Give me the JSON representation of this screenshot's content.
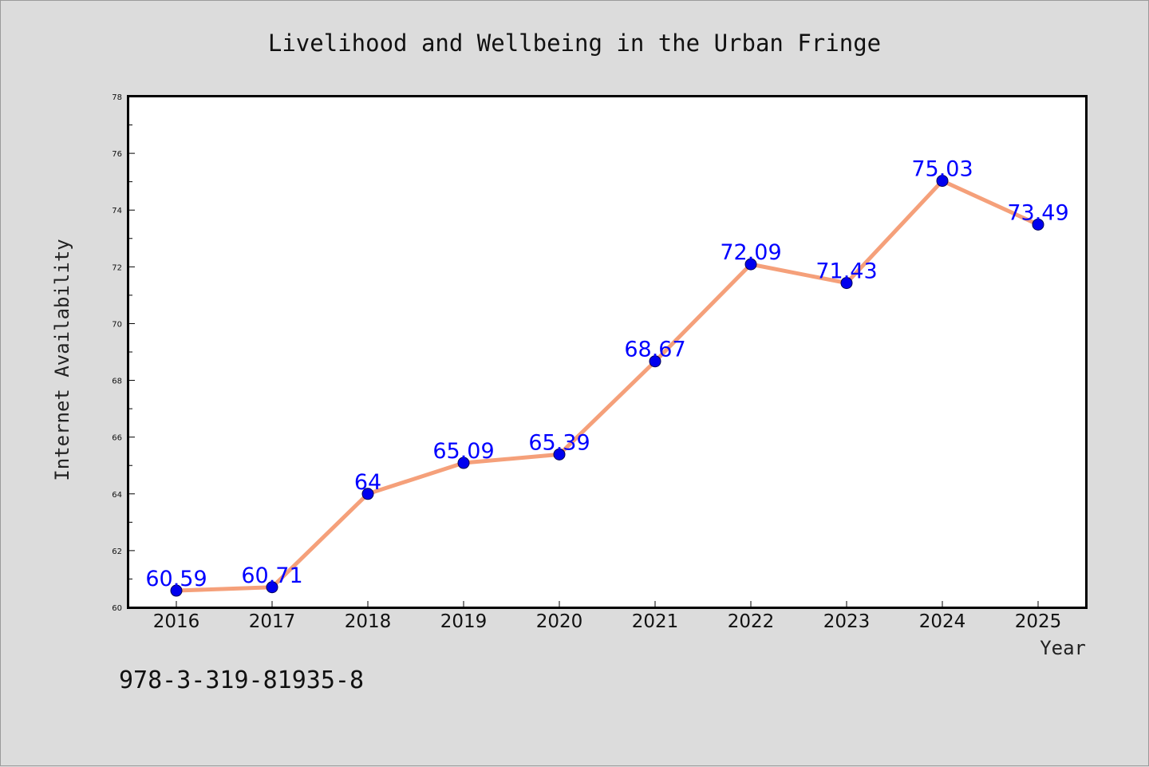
{
  "chart_data": {
    "type": "line",
    "title": "Livelihood and Wellbeing in the Urban Fringe",
    "xlabel": "Year",
    "ylabel": "Internet Availability",
    "categories": [
      "2016",
      "2017",
      "2018",
      "2019",
      "2020",
      "2021",
      "2022",
      "2023",
      "2024",
      "2025"
    ],
    "series": [
      {
        "values": [
          60.59,
          60.71,
          64,
          65.09,
          65.39,
          68.67,
          72.09,
          71.43,
          75.03,
          73.49
        ],
        "data_labels": [
          "60.59",
          "60.71",
          "64",
          "65.09",
          "65.39",
          "68.67",
          "72.09",
          "71.43",
          "75.03",
          "73.49"
        ]
      }
    ],
    "ylim": [
      60,
      78
    ],
    "yticks": [
      60,
      62,
      64,
      66,
      68,
      70,
      72,
      74,
      76,
      78
    ],
    "ytick_labels": [
      "60",
      "62",
      "64",
      "66",
      "68",
      "70",
      "72",
      "74",
      "76",
      "78"
    ],
    "grid": false,
    "legend": "none",
    "colors": {
      "background": "#dcdcdc",
      "plot_background": "#ffffff",
      "line": "#f5a07a",
      "marker": "#0000ee",
      "data_label": "#0000ff",
      "axis": "#000000"
    }
  },
  "footer": {
    "isbn": "978-3-319-81935-8"
  }
}
